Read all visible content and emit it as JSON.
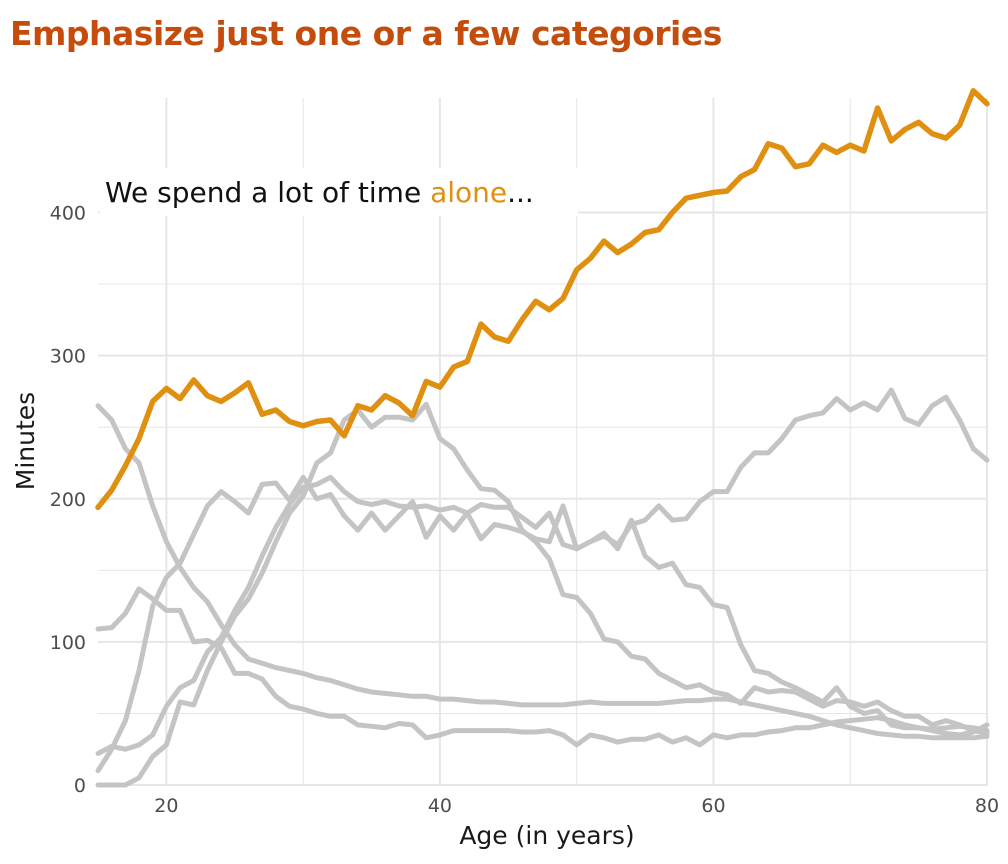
{
  "chart_data": {
    "type": "line",
    "title": "Emphasize just one or a few categories",
    "xlabel": "Age (in years)",
    "ylabel": "Minutes",
    "xlim": [
      15,
      80
    ],
    "ylim": [
      0,
      480
    ],
    "x_ticks": [
      20,
      40,
      60,
      80
    ],
    "y_ticks": [
      0,
      100,
      200,
      300,
      400
    ],
    "grid": true,
    "annotation": {
      "before": "We spend a lot of time ",
      "highlight": "alone",
      "after": "..."
    },
    "colors": {
      "highlight": "#e09010",
      "other": "#c4c4c4",
      "grid": "#e6e6e6",
      "title": "#c44d0e"
    },
    "x": [
      15,
      16,
      17,
      18,
      19,
      20,
      21,
      22,
      23,
      24,
      25,
      26,
      27,
      28,
      29,
      30,
      31,
      32,
      33,
      34,
      35,
      36,
      37,
      38,
      39,
      40,
      41,
      42,
      43,
      44,
      45,
      46,
      47,
      48,
      49,
      50,
      51,
      52,
      53,
      54,
      55,
      56,
      57,
      58,
      59,
      60,
      61,
      62,
      63,
      64,
      65,
      66,
      67,
      68,
      69,
      70,
      71,
      72,
      73,
      74,
      75,
      76,
      77,
      78,
      79,
      80
    ],
    "series": [
      {
        "highlight": false,
        "values": [
          265,
          255,
          235,
          225,
          195,
          170,
          152,
          138,
          128,
          112,
          98,
          88,
          85,
          82,
          80,
          78,
          75,
          73,
          70,
          67,
          65,
          64,
          63,
          62,
          62,
          60,
          60,
          59,
          58,
          58,
          57,
          56,
          56,
          56,
          56,
          57,
          58,
          57,
          57,
          57,
          57,
          57,
          58,
          59,
          59,
          60,
          60,
          58,
          56,
          54,
          52,
          50,
          48,
          45,
          42,
          40,
          38,
          36,
          35,
          34,
          34,
          33,
          33,
          33,
          33,
          34
        ]
      },
      {
        "highlight": false,
        "values": [
          109,
          110,
          120,
          137,
          130,
          122,
          122,
          100,
          101,
          96,
          78,
          78,
          74,
          62,
          55,
          53,
          50,
          48,
          48,
          42,
          41,
          40,
          43,
          42,
          33,
          35,
          38,
          38,
          38,
          38,
          38,
          37,
          37,
          38,
          35,
          28,
          35,
          33,
          30,
          32,
          32,
          35,
          30,
          33,
          28,
          35,
          33,
          35,
          35,
          37,
          38,
          40,
          40,
          42,
          44,
          45,
          46,
          47,
          45,
          42,
          40,
          39,
          40,
          41,
          40,
          38
        ]
      },
      {
        "highlight": false,
        "values": [
          10,
          25,
          45,
          80,
          125,
          145,
          155,
          175,
          195,
          205,
          198,
          190,
          210,
          211,
          199,
          215,
          200,
          203,
          188,
          178,
          190,
          178,
          188,
          198,
          173,
          188,
          178,
          190,
          172,
          182,
          180,
          177,
          172,
          170,
          195,
          165,
          170,
          174,
          168,
          182,
          185,
          195,
          185,
          186,
          198,
          205,
          205,
          222,
          232,
          232,
          242,
          255,
          258,
          260,
          270,
          262,
          267,
          262,
          276,
          256,
          252,
          265,
          271,
          255,
          235,
          227
        ]
      },
      {
        "highlight": false,
        "values": [
          0,
          0,
          0,
          5,
          20,
          28,
          58,
          56,
          80,
          100,
          118,
          130,
          148,
          170,
          190,
          202,
          225,
          232,
          255,
          262,
          250,
          257,
          257,
          255,
          266,
          242,
          235,
          220,
          207,
          206,
          198,
          178,
          170,
          158,
          133,
          131,
          120,
          102,
          100,
          90,
          88,
          78,
          73,
          68,
          70,
          65,
          63,
          57,
          68,
          65,
          66,
          65,
          60,
          55,
          59,
          58,
          55,
          58,
          52,
          48,
          48,
          42,
          45,
          42,
          38,
          36
        ]
      },
      {
        "highlight": false,
        "values": [
          22,
          27,
          25,
          28,
          35,
          55,
          68,
          73,
          93,
          103,
          122,
          138,
          160,
          180,
          196,
          208,
          210,
          215,
          205,
          198,
          196,
          198,
          195,
          194,
          195,
          192,
          194,
          190,
          196,
          194,
          194,
          187,
          180,
          190,
          168,
          165,
          170,
          176,
          165,
          185,
          160,
          152,
          155,
          140,
          138,
          126,
          124,
          98,
          80,
          78,
          72,
          68,
          63,
          58,
          68,
          55,
          50,
          52,
          42,
          40,
          40,
          38,
          36,
          35,
          37,
          42
        ]
      },
      {
        "highlight": true,
        "values": [
          194,
          206,
          223,
          242,
          268,
          277,
          270,
          283,
          272,
          268,
          274,
          281,
          259,
          262,
          254,
          251,
          254,
          255,
          244,
          265,
          262,
          272,
          267,
          258,
          282,
          278,
          292,
          296,
          322,
          313,
          310,
          325,
          338,
          332,
          340,
          360,
          368,
          380,
          372,
          378,
          386,
          388,
          400,
          410,
          412,
          414,
          415,
          425,
          430,
          448,
          445,
          432,
          434,
          447,
          442,
          447,
          443,
          473,
          450,
          458,
          463,
          455,
          452,
          461,
          485,
          476
        ]
      }
    ]
  }
}
